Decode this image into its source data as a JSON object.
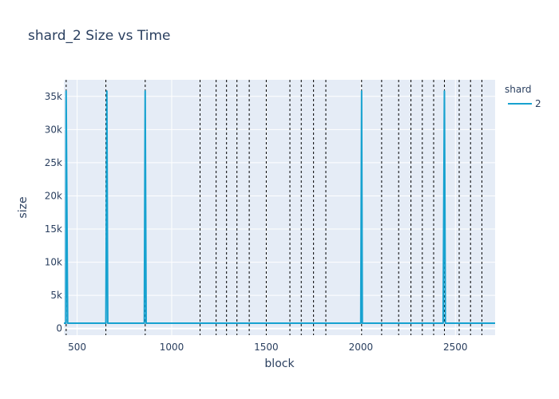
{
  "chart_data": {
    "type": "line",
    "title": "shard_2 Size vs Time",
    "xlabel": "block",
    "ylabel": "size",
    "xlim": [
      430,
      2710
    ],
    "ylim": [
      -1000,
      37500
    ],
    "x_ticks": [
      500,
      1000,
      1500,
      2000,
      2500
    ],
    "x_tick_labels": [
      "500",
      "1000",
      "1500",
      "2000",
      "2500"
    ],
    "y_ticks": [
      0,
      5000,
      10000,
      15000,
      20000,
      25000,
      30000,
      35000
    ],
    "y_tick_labels": [
      "0",
      "5k",
      "10k",
      "15k",
      "20k",
      "25k",
      "30k",
      "35k"
    ],
    "grid": true,
    "legend": {
      "title": "shard",
      "position": "top-right"
    },
    "series": [
      {
        "name": "2",
        "color": "#17a2d0",
        "x": [
          430,
          440,
          442,
          450,
          652,
          657,
          662,
          855,
          860,
          865,
          2000,
          2004,
          2008,
          2435,
          2442,
          2447,
          2710
        ],
        "y": [
          800,
          800,
          35800,
          800,
          800,
          35800,
          800,
          800,
          35800,
          800,
          800,
          35800,
          800,
          800,
          35800,
          800,
          800
        ]
      }
    ],
    "vlines": [
      442,
      652,
      860,
      1150,
      1235,
      1290,
      1345,
      1410,
      1500,
      1625,
      1685,
      1750,
      1815,
      2004,
      2110,
      2200,
      2265,
      2325,
      2385,
      2442,
      2520,
      2580,
      2640
    ],
    "vline_color": "#000000"
  }
}
